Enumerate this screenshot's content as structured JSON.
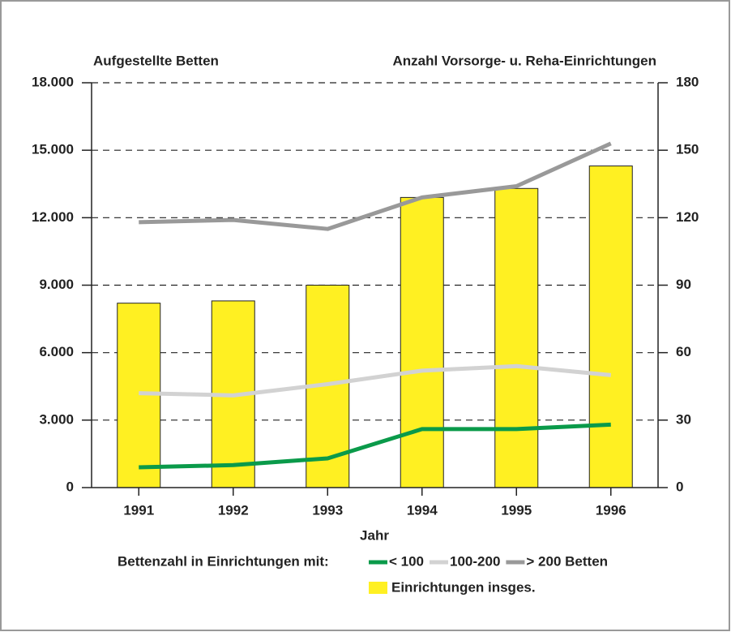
{
  "chart_data": {
    "type": "bar",
    "ylabel": "Aufgestellte Betten",
    "y2label": "Anzahl Vorsorge- u. Reha-Einrichtungen",
    "xlabel": "Jahr",
    "legend_title": "Bettenzahl in Einrichtungen mit:",
    "categories": [
      "1991",
      "1992",
      "1993",
      "1994",
      "1995",
      "1996"
    ],
    "ylim": [
      0,
      18000
    ],
    "yticks": [
      0,
      {
        "value": 3000,
        "label": "3.000"
      },
      {
        "value": 6000,
        "label": "6.000"
      },
      {
        "value": 9000,
        "label": "9.000"
      },
      {
        "value": 12000,
        "label": "12.000"
      },
      {
        "value": 15000,
        "label": "15.000"
      },
      {
        "value": 18000,
        "label": "18.000"
      }
    ],
    "y2lim": [
      0,
      180
    ],
    "y2ticks": [
      0,
      30,
      60,
      90,
      120,
      150,
      180
    ],
    "grid": true,
    "series": [
      {
        "name": "Einrichtungen insges.",
        "type": "bar",
        "axis": "y2",
        "color": "#fff022",
        "values": [
          82,
          83,
          90,
          129,
          133,
          143
        ]
      },
      {
        "name": "< 100",
        "type": "line",
        "color": "#0a9a4a",
        "values": [
          900,
          1000,
          1300,
          2600,
          2600,
          2800
        ]
      },
      {
        "name": "100-200",
        "type": "line",
        "color": "#d2d2d2",
        "values": [
          4200,
          4100,
          4600,
          5200,
          5400,
          5000
        ]
      },
      {
        "name": "> 200 Betten",
        "type": "line",
        "color": "#999999",
        "values": [
          11800,
          11900,
          11500,
          12900,
          13400,
          15300
        ]
      }
    ]
  }
}
